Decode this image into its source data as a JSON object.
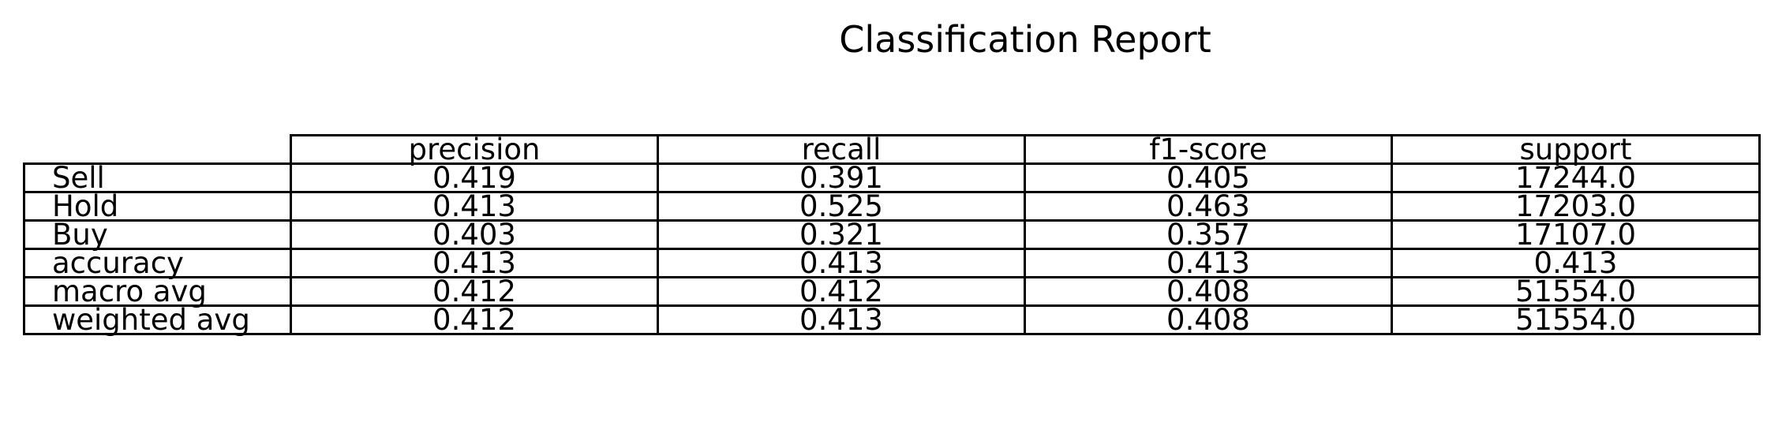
{
  "chart_data": {
    "type": "table",
    "title": "Classification Report",
    "columns": [
      "precision",
      "recall",
      "f1-score",
      "support"
    ],
    "rows": [
      {
        "label": "Sell",
        "values": [
          "0.419",
          "0.391",
          "0.405",
          "17244.0"
        ]
      },
      {
        "label": "Hold",
        "values": [
          "0.413",
          "0.525",
          "0.463",
          "17203.0"
        ]
      },
      {
        "label": "Buy",
        "values": [
          "0.403",
          "0.321",
          "0.357",
          "17107.0"
        ]
      },
      {
        "label": "accuracy",
        "values": [
          "0.413",
          "0.413",
          "0.413",
          "0.413"
        ]
      },
      {
        "label": "macro avg",
        "values": [
          "0.412",
          "0.412",
          "0.408",
          "51554.0"
        ]
      },
      {
        "label": "weighted avg",
        "values": [
          "0.412",
          "0.413",
          "0.408",
          "51554.0"
        ]
      }
    ]
  }
}
